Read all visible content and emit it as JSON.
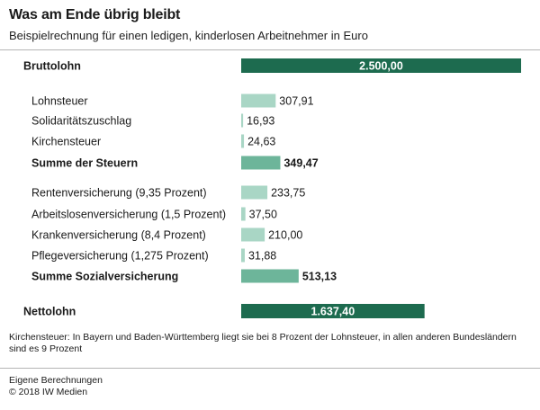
{
  "header": {
    "title": "Was am Ende übrig bleibt",
    "subtitle": "Beispielrechnung für einen ledigen, kinderlosen Arbeitnehmer in Euro"
  },
  "colors": {
    "dark": "#1d6b4f",
    "medium": "#6db59a",
    "light": "#a9d6c5"
  },
  "chart_data": {
    "type": "bar",
    "orientation": "horizontal",
    "title": "Was am Ende übrig bleibt",
    "subtitle": "Beispielrechnung für einen ledigen, kinderlosen Arbeitnehmer in Euro",
    "xlim": [
      0,
      2500
    ],
    "grid": false,
    "legend": "none",
    "categories": [
      "Bruttolohn",
      "Lohnsteuer",
      "Solidaritätszuschlag",
      "Kirchensteuer",
      "Summe der Steuern",
      "Rentenversicherung (9,35 Prozent)",
      "Arbeitslosenversicherung (1,5 Prozent)",
      "Krankenversicherung (8,4 Prozent)",
      "Pflegeversicherung (1,275 Prozent)",
      "Summe Sozialversicherung",
      "Nettolohn"
    ],
    "values": [
      2500.0,
      307.91,
      16.93,
      24.63,
      349.47,
      233.75,
      37.5,
      210.0,
      31.88,
      513.13,
      1637.4
    ],
    "value_labels": [
      "2.500,00",
      "307,91",
      "16,93",
      "24,63",
      "349,47",
      "233,75",
      "37,50",
      "210,00",
      "31,88",
      "513,13",
      "1.637,40"
    ],
    "styles": [
      "total",
      "item",
      "item",
      "item",
      "sum",
      "item",
      "item",
      "item",
      "item",
      "sum",
      "total"
    ]
  },
  "footnote": "Kirchensteuer: In Bayern und Baden-Württemberg liegt sie bei 8 Prozent der Lohnsteuer, in allen anderen Bundesländern sind es 9 Prozent",
  "source": {
    "line1": "Eigene Berechnungen",
    "line2": "© 2018 IW Medien"
  }
}
